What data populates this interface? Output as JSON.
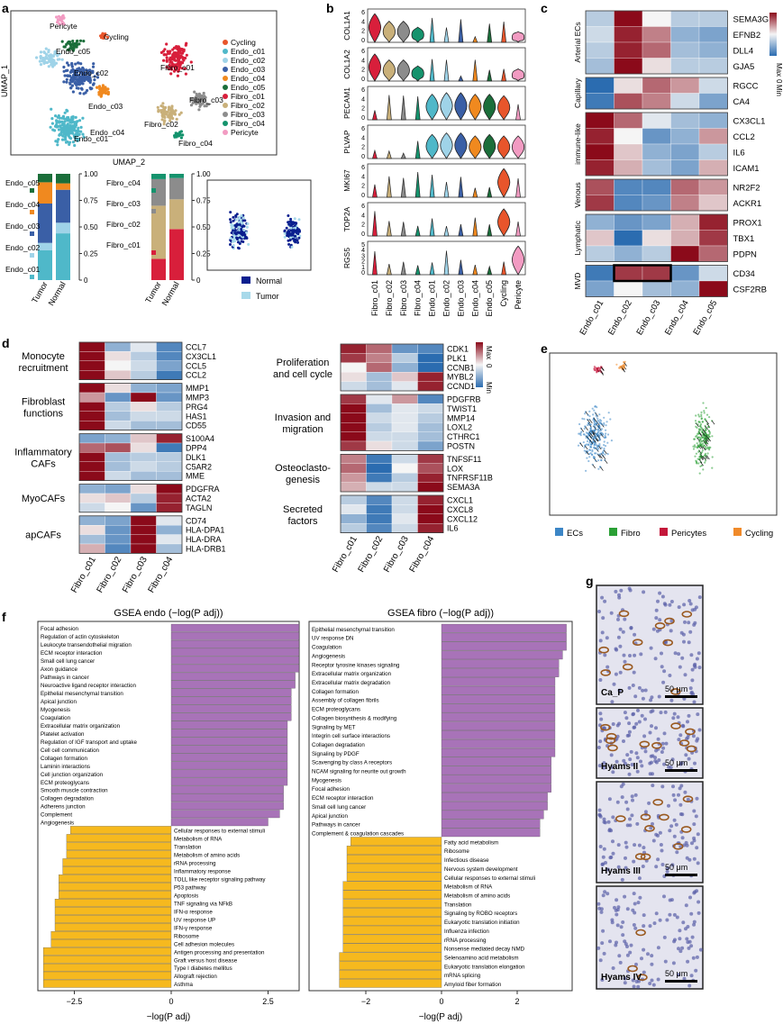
{
  "panel_labels": [
    "a",
    "b",
    "c",
    "d",
    "e",
    "f",
    "g"
  ],
  "colors": {
    "Cycling": "#e8552b",
    "Endo_c01": "#4fb8c9",
    "Endo_c02": "#9fd3e8",
    "Endo_c03": "#3a5fa6",
    "Endo_c04": "#f0891f",
    "Endo_c05": "#1b6e3a",
    "Fibro_c01": "#d81f3b",
    "Fibro_c02": "#c9b07a",
    "Fibro_c03": "#8c8c8c",
    "Fibro_c04": "#15936d",
    "Pericyte": "#f29bc2",
    "heat_low": "#2b6cb0",
    "heat_mid": "#f5f5f5",
    "heat_high": "#8b0a1a",
    "pos_bar": "#a873b8",
    "neg_bar": "#f6b91e",
    "normal": "#0a1f8f",
    "tumor": "#a8d9ea",
    "ECs": "#3c86c6",
    "Fibro": "#2aa035",
    "Pericytes": "#c4163a",
    "Cycling_e": "#f08a2a"
  },
  "panel_a": {
    "umap_xlabel": "UMAP_2",
    "umap_ylabel": "UMAP_1",
    "legend": [
      "Cycling",
      "Endo_c01",
      "Endo_c02",
      "Endo_c03",
      "Endo_c04",
      "Endo_c05",
      "Fibro_c01",
      "Fibro_c02",
      "Fibro_c03",
      "Fibro_c04",
      "Pericyte"
    ],
    "cluster_labels": [
      "Pericyte",
      "Cycling",
      "Endo_c05",
      "Endo_c02",
      "Endo_c03",
      "Endo_c04",
      "Endo_c01",
      "Fibro_c01",
      "Fibro_c03",
      "Fibro_c02",
      "Fibro_c04"
    ],
    "endo_bar_labels": [
      "Endo_c05",
      "Endo_c04",
      "Endo_c03",
      "Endo_c02",
      "Endo_c01"
    ],
    "fibro_bar_labels": [
      "Fibro_c04",
      "Fibro_c03",
      "Fibro_c02",
      "Fibro_c01"
    ],
    "bar_groups": [
      "Tumor",
      "Normal"
    ],
    "yticks": [
      "1.00",
      "0.75",
      "0.50",
      "0.25",
      "0"
    ],
    "density_legend": [
      "Normal",
      "Tumor"
    ]
  },
  "chart_data": [
    {
      "type": "bar",
      "title": "",
      "xlabel": "",
      "ylabel": "",
      "categories": [
        "Tumor",
        "Normal"
      ],
      "series": [
        {
          "name": "Endo_c01",
          "values": [
            0.28,
            0.44
          ]
        },
        {
          "name": "Endo_c02",
          "values": [
            0.07,
            0.1
          ]
        },
        {
          "name": "Endo_c03",
          "values": [
            0.37,
            0.31
          ]
        },
        {
          "name": "Endo_c04",
          "values": [
            0.2,
            0.06
          ]
        },
        {
          "name": "Endo_c05",
          "values": [
            0.08,
            0.09
          ]
        }
      ],
      "ylim": [
        0,
        1
      ]
    },
    {
      "type": "bar",
      "title": "",
      "xlabel": "",
      "ylabel": "",
      "categories": [
        "Tumor",
        "Normal"
      ],
      "series": [
        {
          "name": "Fibro_c01",
          "values": [
            0.2,
            0.48
          ]
        },
        {
          "name": "Fibro_c02",
          "values": [
            0.5,
            0.28
          ]
        },
        {
          "name": "Fibro_c03",
          "values": [
            0.25,
            0.2
          ]
        },
        {
          "name": "Fibro_c04",
          "values": [
            0.05,
            0.04
          ]
        }
      ],
      "ylim": [
        0,
        1
      ]
    },
    {
      "type": "bar",
      "title": "GSEA endo (−log(P adj))",
      "xlabel": "−log(P adj)",
      "ylabel": "",
      "xticks": [
        "−2.5",
        "0",
        "2.5"
      ],
      "xlim": [
        -3.5,
        3.5
      ],
      "categories": [
        "Focal adhesion",
        "Regulation of actin cytoskeleton",
        "Leukocyte transendothelial migration",
        "ECM receptor interaction",
        "Small cell lung cancer",
        "Axon guidance",
        "Pathways in cancer",
        "Neuroactive ligand receptor interaction",
        "Epithelial mesenchymal transition",
        "Apical junction",
        "Myogenesis",
        "Coagulation",
        "Extracellular matrix organization",
        "Platelet activation",
        "Regulation of IGF transport and uptake",
        "Cell cell communication",
        "Collagen formation",
        "Laminin interactions",
        "Cell junction organization",
        "ECM proteoglycans",
        "Smooth muscle contraction",
        "Collagen degradation",
        "Adherens junction",
        "Complement",
        "Angiogenesis",
        "Cellular responses to external stimuli",
        "Metabolism of RNA",
        "Translation",
        "Metabolism of amino acids",
        "rRNA processing",
        "Inflammatory response",
        "TOLL like receptor signaling pathway",
        "P53 pathway",
        "Apoptosis",
        "TNF signaling via NFkB",
        "IFN-α response",
        "UV response UP",
        "IFN-γ response",
        "Ribosome",
        "Cell adhesion molecules",
        "Antigen processing and presentation",
        "Graft versus host disease",
        "Type I diabetes mellitus",
        "Allograft rejection",
        "Asthma"
      ],
      "values": [
        3.3,
        3.3,
        3.3,
        3.3,
        3.3,
        3.3,
        3.2,
        3.2,
        3.1,
        3.1,
        3.1,
        3.1,
        3.0,
        3.0,
        3.0,
        3.0,
        3.0,
        3.0,
        3.0,
        3.0,
        2.9,
        2.9,
        2.9,
        2.8,
        2.5,
        -2.6,
        -2.7,
        -2.7,
        -2.7,
        -2.8,
        -2.8,
        -2.9,
        -2.9,
        -2.9,
        -3.0,
        -3.0,
        -3.0,
        -3.0,
        -3.1,
        -3.1,
        -3.3,
        -3.3,
        -3.3,
        -3.3,
        -3.3
      ]
    },
    {
      "type": "bar",
      "title": "GSEA fibro (−log(P adj))",
      "xlabel": "−log(P adj)",
      "ylabel": "",
      "xticks": [
        "−2",
        "0",
        "2"
      ],
      "xlim": [
        -3.0,
        3.5
      ],
      "categories": [
        "Epithelial mesenchymal transition",
        "UV response DN",
        "Coagulation",
        "Angiogenesis",
        "Receptor tyrosine kinases signaling",
        "Extracellular matrix organization",
        "Extracellular matrix degradation",
        "Collagen formation",
        "Assembly of collagen fibrils",
        "ECM proteoglycans",
        "Collagen biosynthesis & modifying",
        "Signaling by MET",
        "Integrin cell surface interactions",
        "Collagen degradation",
        "Signaling by PDGF",
        "Scavenging by class A receptors",
        "NCAM signaling for neurite out growth",
        "Myogenesis",
        "Focal adhesion",
        "ECM receptor interaction",
        "Small cell lung cancer",
        "Apical junction",
        "Pathways in cancer",
        "Complement & coagulation cascades",
        "Fatty acid metabolism",
        "Ribosome",
        "Infectious disease",
        "Nervous system development",
        "Cellular responses to external stimuli",
        "Metabolism of RNA",
        "Metabolism of amino acids",
        "Translation",
        "Signaling by ROBO receptors",
        "Eukaryotic translation initiation",
        "Influenza infection",
        "rRNA processing",
        "Nonsense mediated decay NMD",
        "Selenoamino acid metabolism",
        "Eukaryotic translation elongation",
        "mRNA splicing",
        "Amyloid fiber formation"
      ],
      "values": [
        3.3,
        3.3,
        3.3,
        3.2,
        3.1,
        3.1,
        3.0,
        3.0,
        3.0,
        3.0,
        3.0,
        3.0,
        3.0,
        3.0,
        3.0,
        2.9,
        2.9,
        2.9,
        2.9,
        2.8,
        2.8,
        2.7,
        2.6,
        2.6,
        -2.4,
        -2.5,
        -2.5,
        -2.5,
        -2.5,
        -2.6,
        -2.6,
        -2.6,
        -2.6,
        -2.6,
        -2.6,
        -2.6,
        -2.6,
        -2.7,
        -2.7,
        -2.7,
        -2.7
      ]
    }
  ],
  "panel_b": {
    "genes": [
      "COL1A1",
      "COL1A2",
      "PECAM1",
      "PLVAP",
      "MKI67",
      "TOP2A",
      "RGS5"
    ],
    "yticks": [
      [
        "6",
        "4",
        "2",
        "0"
      ],
      [
        "6",
        "4",
        "2",
        "0"
      ],
      [
        "6",
        "4",
        "2",
        "0"
      ],
      [
        "6",
        "4",
        "2",
        "0"
      ],
      [
        "6",
        "4",
        "2",
        "0"
      ],
      [
        "6",
        "4",
        "2",
        "0"
      ],
      [
        "5",
        "4",
        "3",
        "2",
        "1",
        "0"
      ]
    ],
    "clusters": [
      "Fibro_c01",
      "Fibro_c02",
      "Fibro_c03",
      "Fibro_c04",
      "Endo_c01",
      "Endo_c02",
      "Endo_c03",
      "Endo_c04",
      "Endo_c05",
      "Cycling",
      "Pericyte"
    ]
  },
  "panel_c": {
    "groups": [
      {
        "name": "Arterial ECs",
        "genes": [
          "SEMA3G",
          "EFNB2",
          "DLL4",
          "GJA5"
        ]
      },
      {
        "name": "Capillary",
        "genes": [
          "RGCC",
          "CA4"
        ]
      },
      {
        "name": "Immune-like",
        "genes": [
          "CX3CL1",
          "CCL2",
          "IL6",
          "ICAM1"
        ]
      },
      {
        "name": "Venous",
        "genes": [
          "NR2F2",
          "ACKR1"
        ]
      },
      {
        "name": "Lymphatic",
        "genes": [
          "PROX1",
          "TBX1",
          "PDPN"
        ]
      },
      {
        "name": "MVD",
        "genes": [
          "CD34",
          "CSF2RB"
        ]
      }
    ],
    "columns": [
      "Endo_c01",
      "Endo_c02",
      "Endo_c03",
      "Endo_c04",
      "Endo_c05"
    ],
    "values": [
      [
        -0.3,
        1.0,
        0.0,
        -0.3,
        -0.3
      ],
      [
        -0.2,
        0.9,
        0.5,
        -0.5,
        -0.6
      ],
      [
        -0.3,
        0.9,
        0.6,
        -0.4,
        -0.5
      ],
      [
        -0.4,
        1.0,
        0.1,
        -0.3,
        -0.3
      ],
      [
        -1.0,
        0.1,
        0.6,
        0.4,
        -0.2
      ],
      [
        -0.9,
        0.7,
        0.5,
        -0.2,
        -0.6
      ],
      [
        1.0,
        0.6,
        -0.1,
        -0.4,
        -0.5
      ],
      [
        0.9,
        0.0,
        -0.7,
        -0.5,
        0.4
      ],
      [
        1.0,
        0.2,
        -0.5,
        -0.6,
        -0.3
      ],
      [
        0.9,
        0.3,
        -0.4,
        -0.6,
        0.3
      ],
      [
        0.7,
        -0.8,
        -0.8,
        0.6,
        0.4
      ],
      [
        0.8,
        -0.8,
        -0.7,
        0.5,
        0.2
      ],
      [
        -0.5,
        -0.7,
        -0.6,
        0.3,
        0.9
      ],
      [
        0.2,
        -1.0,
        0.1,
        0.3,
        0.8
      ],
      [
        -0.3,
        -0.5,
        -0.3,
        1.0,
        0.6
      ],
      [
        -0.9,
        0.8,
        0.8,
        -0.7,
        -0.2
      ],
      [
        -0.6,
        0.0,
        -0.4,
        -0.5,
        1.0
      ]
    ],
    "legend": [
      "Max",
      "0",
      "Min"
    ],
    "group_label_rot": [
      "Arterial ECs",
      "Capillary",
      "immune-like",
      "Venous",
      "Lymphatic",
      "MVD"
    ]
  },
  "panel_d": {
    "left_groups": [
      {
        "name": "Monocyte recruitment",
        "genes": [
          "CCL7",
          "CX3CL1",
          "CCL5",
          "CCL2"
        ]
      },
      {
        "name": "Fibroblast functions",
        "genes": [
          "MMP1",
          "MMP3",
          "PRG4",
          "HAS1",
          "CD55"
        ]
      },
      {
        "name": "Inflammatory CAFs",
        "genes": [
          "S100A4",
          "DPP4",
          "DLK1",
          "C5AR2",
          "MME"
        ]
      },
      {
        "name": "MyoCAFs",
        "genes": [
          "PDGFRA",
          "ACTA2",
          "TAGLN"
        ]
      },
      {
        "name": "apCAFs",
        "genes": [
          "CD74",
          "HLA-DPA1",
          "HLA-DRA",
          "HLA-DRB1"
        ]
      }
    ],
    "right_groups": [
      {
        "name": "Proliferation and cell cycle",
        "genes": [
          "CDK1",
          "PLK1",
          "CCNB1",
          "MYBL2",
          "CCND1"
        ]
      },
      {
        "name": "Invasion and migration",
        "genes": [
          "PDGFRB",
          "TWIST1",
          "MMP14",
          "LOXL2",
          "CTHRC1",
          "POSTN"
        ]
      },
      {
        "name": "Osteoclasto-genesis",
        "genes": [
          "TNFSF11",
          "LOX",
          "TNFRSF11B",
          "SEMA3A"
        ]
      },
      {
        "name": "Secreted factors",
        "genes": [
          "CXCL1",
          "CXCL8",
          "CXCL12",
          "IL6"
        ]
      }
    ],
    "columns": [
      "Fibro_c01",
      "Fibro_c02",
      "Fibro_c03",
      "Fibro_c04"
    ],
    "left_values": [
      [
        1.0,
        -0.5,
        -0.1,
        -0.8
      ],
      [
        1.0,
        0.1,
        -0.3,
        -0.8
      ],
      [
        1.0,
        0.0,
        -0.2,
        -0.6
      ],
      [
        1.0,
        0.2,
        -0.3,
        -0.9
      ],
      [
        1.0,
        0.1,
        -0.5,
        -0.6
      ],
      [
        0.4,
        -0.7,
        1.0,
        -0.7
      ],
      [
        1.0,
        -0.3,
        0.1,
        -0.3
      ],
      [
        1.0,
        -0.4,
        -0.2,
        -0.2
      ],
      [
        1.0,
        -0.2,
        -0.4,
        -0.4
      ],
      [
        -0.6,
        -0.5,
        0.2,
        0.9
      ],
      [
        0.6,
        0.7,
        0.1,
        -0.9
      ],
      [
        1.0,
        -0.4,
        -0.3,
        -0.3
      ],
      [
        1.0,
        -0.4,
        -0.2,
        -0.3
      ],
      [
        1.0,
        -0.2,
        -0.4,
        -0.4
      ],
      [
        -0.5,
        -0.6,
        0.1,
        1.0
      ],
      [
        0.1,
        0.2,
        -0.3,
        0.9
      ],
      [
        -0.2,
        0.0,
        -0.7,
        0.9
      ],
      [
        -0.5,
        -0.6,
        1.0,
        -0.1
      ],
      [
        0.1,
        -0.7,
        1.0,
        -0.5
      ],
      [
        -0.4,
        -0.7,
        1.0,
        -0.1
      ],
      [
        0.3,
        -0.8,
        1.0,
        -0.4
      ]
    ],
    "right_values": [
      [
        0.9,
        0.6,
        -0.7,
        -0.8
      ],
      [
        0.8,
        0.5,
        -0.3,
        -1.0
      ],
      [
        0.0,
        0.6,
        -0.5,
        -1.0
      ],
      [
        0.1,
        -0.4,
        0.2,
        0.9
      ],
      [
        -0.2,
        -0.4,
        -0.1,
        0.9
      ],
      [
        0.8,
        -0.1,
        0.4,
        -0.8
      ],
      [
        1.0,
        -0.4,
        -0.1,
        -0.2
      ],
      [
        1.0,
        -0.2,
        -0.1,
        -0.3
      ],
      [
        1.0,
        -0.3,
        -0.1,
        -0.4
      ],
      [
        1.0,
        -0.2,
        -0.2,
        -0.4
      ],
      [
        0.8,
        0.1,
        -0.2,
        -0.6
      ],
      [
        0.5,
        -0.9,
        -0.2,
        0.8
      ],
      [
        0.6,
        -1.0,
        0.0,
        0.7
      ],
      [
        0.4,
        -0.9,
        -0.3,
        0.9
      ],
      [
        0.3,
        -0.2,
        -0.2,
        1.0
      ],
      [
        -0.3,
        -0.8,
        -0.2,
        0.9
      ],
      [
        -0.1,
        -0.9,
        -0.2,
        1.0
      ],
      [
        -0.5,
        -0.9,
        -0.1,
        1.0
      ],
      [
        -0.3,
        -0.8,
        -0.2,
        0.9
      ]
    ],
    "legend": [
      "Max",
      "0",
      "Min"
    ]
  },
  "panel_e": {
    "legend": [
      "ECs",
      "Fibro",
      "Pericytes",
      "Cycling"
    ]
  },
  "panel_g": {
    "labels": [
      "Ca_P",
      "Hyams II",
      "Hyams III",
      "Hyams IV"
    ],
    "scale": "50 μm"
  }
}
